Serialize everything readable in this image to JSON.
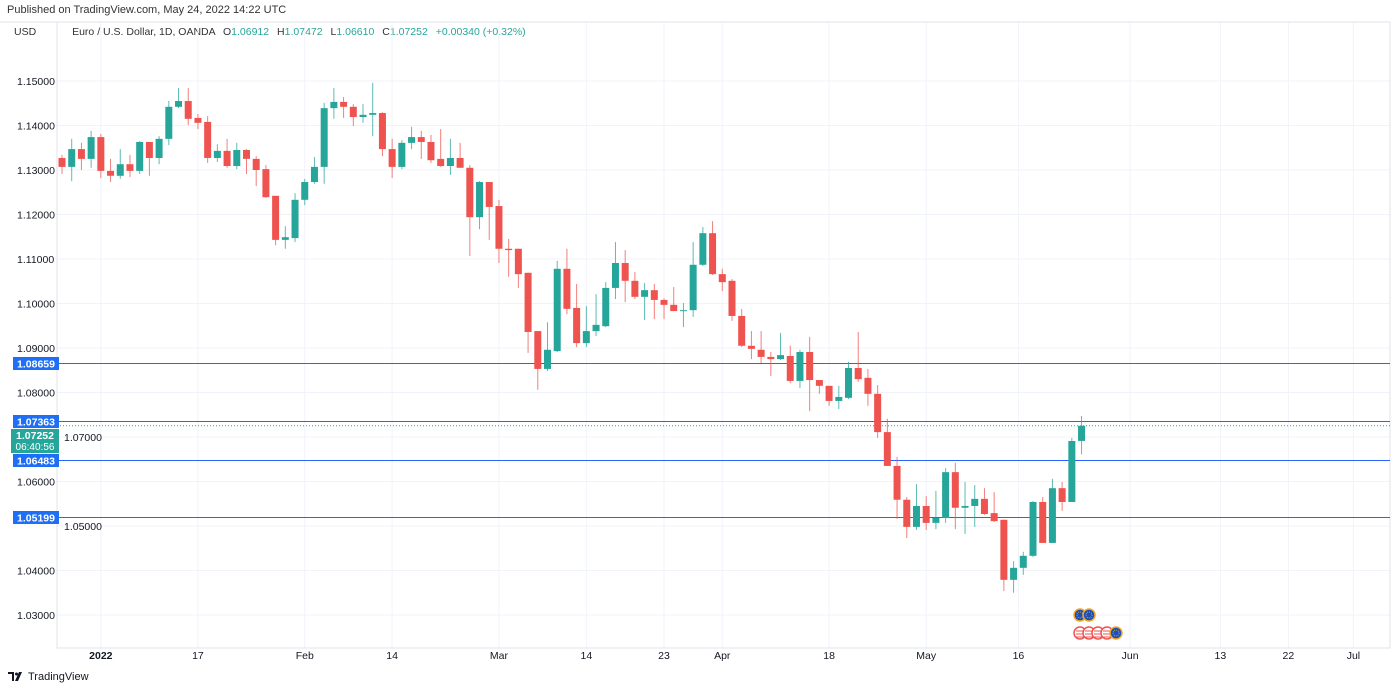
{
  "header": {
    "published": "Published on TradingView.com, May 24, 2022 14:22 UTC",
    "currency": "USD",
    "symbol": "Euro / U.S. Dollar, 1D, OANDA",
    "o_label": "O",
    "o": "1.06912",
    "h_label": "H",
    "h": "1.07472",
    "l_label": "L",
    "l": "1.06610",
    "c_label": "C",
    "c": "1.07252",
    "change": "+0.00340 (+0.32%)"
  },
  "footer": {
    "brand": "TradingView"
  },
  "colors": {
    "up": "#26a69a",
    "down": "#ef5350",
    "hline": "#2962ff",
    "grid": "#f0f3fa",
    "text": "#131722"
  },
  "chart_data": {
    "type": "candlestick",
    "title": "Euro / U.S. Dollar, 1D, OANDA",
    "ylabel": "USD",
    "ylim": [
      1.025,
      1.16
    ],
    "y_ticks": [
      "1.03000",
      "1.04000",
      "1.05000",
      "1.06000",
      "1.07000",
      "1.08000",
      "1.09000",
      "1.10000",
      "1.11000",
      "1.12000",
      "1.13000",
      "1.14000",
      "1.15000"
    ],
    "x_labels": [
      {
        "label": "2022",
        "bar_index": 4
      },
      {
        "label": "17",
        "bar_index": 14
      },
      {
        "label": "Feb",
        "bar_index": 25
      },
      {
        "label": "14",
        "bar_index": 34
      },
      {
        "label": "Mar",
        "bar_index": 45
      },
      {
        "label": "14",
        "bar_index": 54
      },
      {
        "label": "23",
        "bar_index": 62
      },
      {
        "label": "Apr",
        "bar_index": 68
      },
      {
        "label": "18",
        "bar_index": 79
      },
      {
        "label": "May",
        "bar_index": 89
      },
      {
        "label": "16",
        "bar_index": 98.5
      },
      {
        "label": "Jun",
        "bar_index": 110
      },
      {
        "label": "13",
        "bar_index": 119.3
      },
      {
        "label": "22",
        "bar_index": 126.3
      },
      {
        "label": "Jul",
        "bar_index": 133
      }
    ],
    "ohlc_fields": [
      "open",
      "high",
      "low",
      "close"
    ],
    "ohlc": [
      [
        1.1327,
        1.1334,
        1.1291,
        1.1307
      ],
      [
        1.1307,
        1.137,
        1.1275,
        1.1347
      ],
      [
        1.1347,
        1.1361,
        1.13,
        1.1325
      ],
      [
        1.1325,
        1.1388,
        1.1305,
        1.1374
      ],
      [
        1.1374,
        1.1381,
        1.1282,
        1.1298
      ],
      [
        1.1298,
        1.1325,
        1.1273,
        1.1287
      ],
      [
        1.1287,
        1.1347,
        1.128,
        1.1313
      ],
      [
        1.1313,
        1.1334,
        1.1284,
        1.1298
      ],
      [
        1.1298,
        1.1365,
        1.1291,
        1.1363
      ],
      [
        1.1363,
        1.1363,
        1.1287,
        1.1327
      ],
      [
        1.1327,
        1.1376,
        1.1313,
        1.137
      ],
      [
        1.137,
        1.1455,
        1.1356,
        1.1442
      ],
      [
        1.1442,
        1.1484,
        1.1439,
        1.1455
      ],
      [
        1.1455,
        1.1484,
        1.1401,
        1.1415
      ],
      [
        1.1417,
        1.1426,
        1.1392,
        1.1406
      ],
      [
        1.1408,
        1.1421,
        1.1316,
        1.1327
      ],
      [
        1.1327,
        1.1358,
        1.1318,
        1.1343
      ],
      [
        1.1343,
        1.137,
        1.1305,
        1.1309
      ],
      [
        1.1309,
        1.1361,
        1.1302,
        1.1345
      ],
      [
        1.1345,
        1.1347,
        1.1291,
        1.1325
      ],
      [
        1.1325,
        1.1331,
        1.1264,
        1.13
      ],
      [
        1.1302,
        1.1311,
        1.1237,
        1.1239
      ],
      [
        1.1242,
        1.1242,
        1.1131,
        1.1143
      ],
      [
        1.1143,
        1.1174,
        1.1123,
        1.1149
      ],
      [
        1.1147,
        1.1248,
        1.1138,
        1.1233
      ],
      [
        1.1233,
        1.128,
        1.1221,
        1.1273
      ],
      [
        1.1273,
        1.1329,
        1.1269,
        1.1307
      ],
      [
        1.1307,
        1.1451,
        1.1269,
        1.1439
      ],
      [
        1.1439,
        1.1484,
        1.1415,
        1.1453
      ],
      [
        1.1453,
        1.1464,
        1.1417,
        1.1442
      ],
      [
        1.1442,
        1.1448,
        1.1399,
        1.1419
      ],
      [
        1.1419,
        1.1448,
        1.1406,
        1.1424
      ],
      [
        1.1424,
        1.1496,
        1.1376,
        1.1428
      ],
      [
        1.1428,
        1.143,
        1.1331,
        1.1347
      ],
      [
        1.1347,
        1.137,
        1.1282,
        1.1307
      ],
      [
        1.1307,
        1.1367,
        1.1302,
        1.1361
      ],
      [
        1.1361,
        1.1397,
        1.1347,
        1.1374
      ],
      [
        1.1374,
        1.1388,
        1.1325,
        1.1363
      ],
      [
        1.1363,
        1.1379,
        1.1316,
        1.1322
      ],
      [
        1.1325,
        1.1392,
        1.1307,
        1.1309
      ],
      [
        1.1309,
        1.137,
        1.1289,
        1.1327
      ],
      [
        1.1327,
        1.1361,
        1.1305,
        1.1305
      ],
      [
        1.1305,
        1.1311,
        1.1107,
        1.1194
      ],
      [
        1.1194,
        1.1275,
        1.1167,
        1.1273
      ],
      [
        1.1273,
        1.1273,
        1.1143,
        1.1217
      ],
      [
        1.1219,
        1.1233,
        1.1091,
        1.1123
      ],
      [
        1.1123,
        1.1145,
        1.106,
        1.112
      ],
      [
        1.1123,
        1.1123,
        1.1035,
        1.1066
      ],
      [
        1.1069,
        1.1069,
        1.0889,
        1.0936
      ],
      [
        1.0938,
        1.0938,
        1.0806,
        1.0853
      ],
      [
        1.0853,
        1.0958,
        1.0848,
        1.0896
      ],
      [
        1.0893,
        1.1096,
        1.0891,
        1.1078
      ],
      [
        1.1078,
        1.1123,
        1.0976,
        1.0988
      ],
      [
        1.099,
        1.1044,
        1.0902,
        1.0911
      ],
      [
        1.0911,
        1.0994,
        1.0902,
        1.0938
      ],
      [
        1.0938,
        1.1021,
        1.0927,
        1.0952
      ],
      [
        1.0949,
        1.1048,
        1.0947,
        1.1035
      ],
      [
        1.1035,
        1.1138,
        1.101,
        1.1091
      ],
      [
        1.1091,
        1.112,
        1.1003,
        1.1051
      ],
      [
        1.1051,
        1.1071,
        1.101,
        1.1015
      ],
      [
        1.1015,
        1.1046,
        1.0963,
        1.103
      ],
      [
        1.103,
        1.1044,
        1.0965,
        1.1008
      ],
      [
        1.1008,
        1.1012,
        1.0965,
        1.0997
      ],
      [
        1.0997,
        1.1037,
        1.0983,
        1.0983
      ],
      [
        1.0983,
        1.1001,
        1.0947,
        1.0985
      ],
      [
        1.0985,
        1.1138,
        1.097,
        1.1087
      ],
      [
        1.1087,
        1.1172,
        1.1084,
        1.1158
      ],
      [
        1.1158,
        1.1185,
        1.1064,
        1.1066
      ],
      [
        1.1066,
        1.1078,
        1.1028,
        1.1048
      ],
      [
        1.1051,
        1.1055,
        1.0961,
        1.0972
      ],
      [
        1.0972,
        1.0988,
        1.0902,
        1.0905
      ],
      [
        1.0905,
        1.0938,
        1.0875,
        1.0898
      ],
      [
        1.0896,
        1.0938,
        1.0866,
        1.088
      ],
      [
        1.088,
        1.0891,
        1.0837,
        1.0875
      ],
      [
        1.0875,
        1.0934,
        1.0873,
        1.0884
      ],
      [
        1.0882,
        1.0905,
        1.0821,
        1.0826
      ],
      [
        1.0826,
        1.0896,
        1.081,
        1.0891
      ],
      [
        1.0891,
        1.0925,
        1.0758,
        1.0828
      ],
      [
        1.0828,
        1.0828,
        1.0797,
        1.0815
      ],
      [
        1.0815,
        1.0815,
        1.077,
        1.0781
      ],
      [
        1.0781,
        1.0815,
        1.0763,
        1.079
      ],
      [
        1.0788,
        1.0869,
        1.0785,
        1.0855
      ],
      [
        1.0855,
        1.0936,
        1.0824,
        1.083
      ],
      [
        1.0833,
        1.0853,
        1.077,
        1.0797
      ],
      [
        1.0797,
        1.0817,
        1.0698,
        1.0711
      ],
      [
        1.0711,
        1.0741,
        1.0635,
        1.0635
      ],
      [
        1.0635,
        1.0655,
        1.0516,
        1.0559
      ],
      [
        1.0559,
        1.0565,
        1.0473,
        1.0498
      ],
      [
        1.0498,
        1.0594,
        1.0491,
        1.0545
      ],
      [
        1.0545,
        1.0567,
        1.0491,
        1.0507
      ],
      [
        1.0507,
        1.0579,
        1.0493,
        1.0518
      ],
      [
        1.0518,
        1.063,
        1.0507,
        1.0621
      ],
      [
        1.0621,
        1.0642,
        1.0493,
        1.0541
      ],
      [
        1.0541,
        1.0599,
        1.0482,
        1.0545
      ],
      [
        1.0545,
        1.0592,
        1.0498,
        1.0561
      ],
      [
        1.0561,
        1.0585,
        1.0525,
        1.0527
      ],
      [
        1.0529,
        1.0576,
        1.0509,
        1.0511
      ],
      [
        1.0514,
        1.0514,
        1.0354,
        1.0379
      ],
      [
        1.0379,
        1.0421,
        1.035,
        1.0406
      ],
      [
        1.0406,
        1.0442,
        1.039,
        1.0433
      ],
      [
        1.0433,
        1.0556,
        1.043,
        1.0554
      ],
      [
        1.0554,
        1.0565,
        1.0462,
        1.0462
      ],
      [
        1.0462,
        1.0606,
        1.0462,
        1.0585
      ],
      [
        1.0585,
        1.0599,
        1.0534,
        1.0554
      ],
      [
        1.0554,
        1.0698,
        1.0554,
        1.0691
      ],
      [
        1.06912,
        1.07472,
        1.0661,
        1.07252
      ]
    ],
    "horizontal_lines": [
      {
        "label": "1.08659",
        "value": 1.08659
      },
      {
        "label": "1.07363",
        "value": 1.07363
      },
      {
        "label": "1.06483",
        "value": 1.06483
      },
      {
        "label": "1.05199",
        "value": 1.05199
      }
    ],
    "last_price": {
      "label": "1.07252",
      "value": 1.07252,
      "countdown": "06:40:56"
    },
    "events": [
      {
        "row": 1,
        "flags": [
          "eu",
          "eu"
        ]
      },
      {
        "row": 2,
        "flags": [
          "us",
          "us",
          "us",
          "us",
          "eu"
        ]
      }
    ]
  }
}
